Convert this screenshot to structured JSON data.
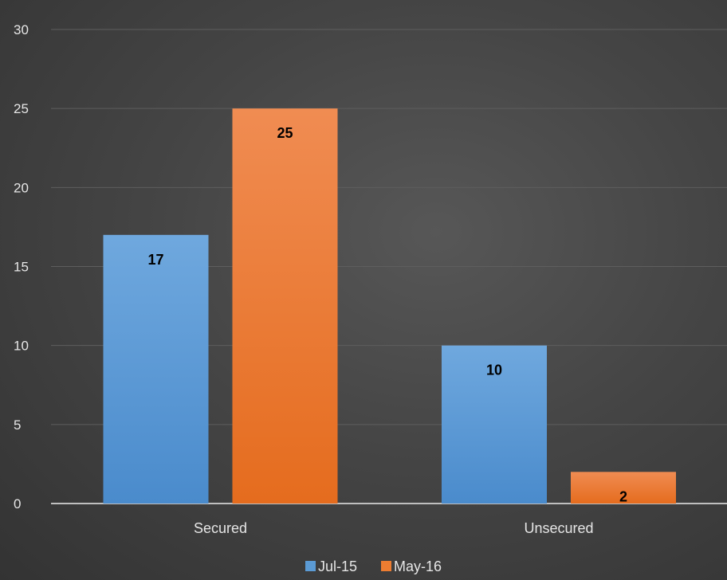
{
  "chart_data": {
    "type": "bar",
    "title": "",
    "xlabel": "",
    "ylabel": "",
    "categories": [
      "Secured",
      "Unsecured"
    ],
    "series": [
      {
        "name": "Jul-15",
        "values": [
          17,
          10
        ],
        "color": "#5b9bd5"
      },
      {
        "name": "May-16",
        "values": [
          25,
          2
        ],
        "color": "#ed7d31"
      }
    ],
    "ylim": [
      0,
      30
    ],
    "yticks": [
      0,
      5,
      10,
      15,
      20,
      25,
      30
    ],
    "grid": true,
    "legend": "bottom",
    "data_labels": true,
    "colors": {
      "axis_text": "#e6e6e6",
      "gridline": "#5e5e5e",
      "baseline": "#bfbfbf",
      "label_text": "#000000"
    }
  }
}
